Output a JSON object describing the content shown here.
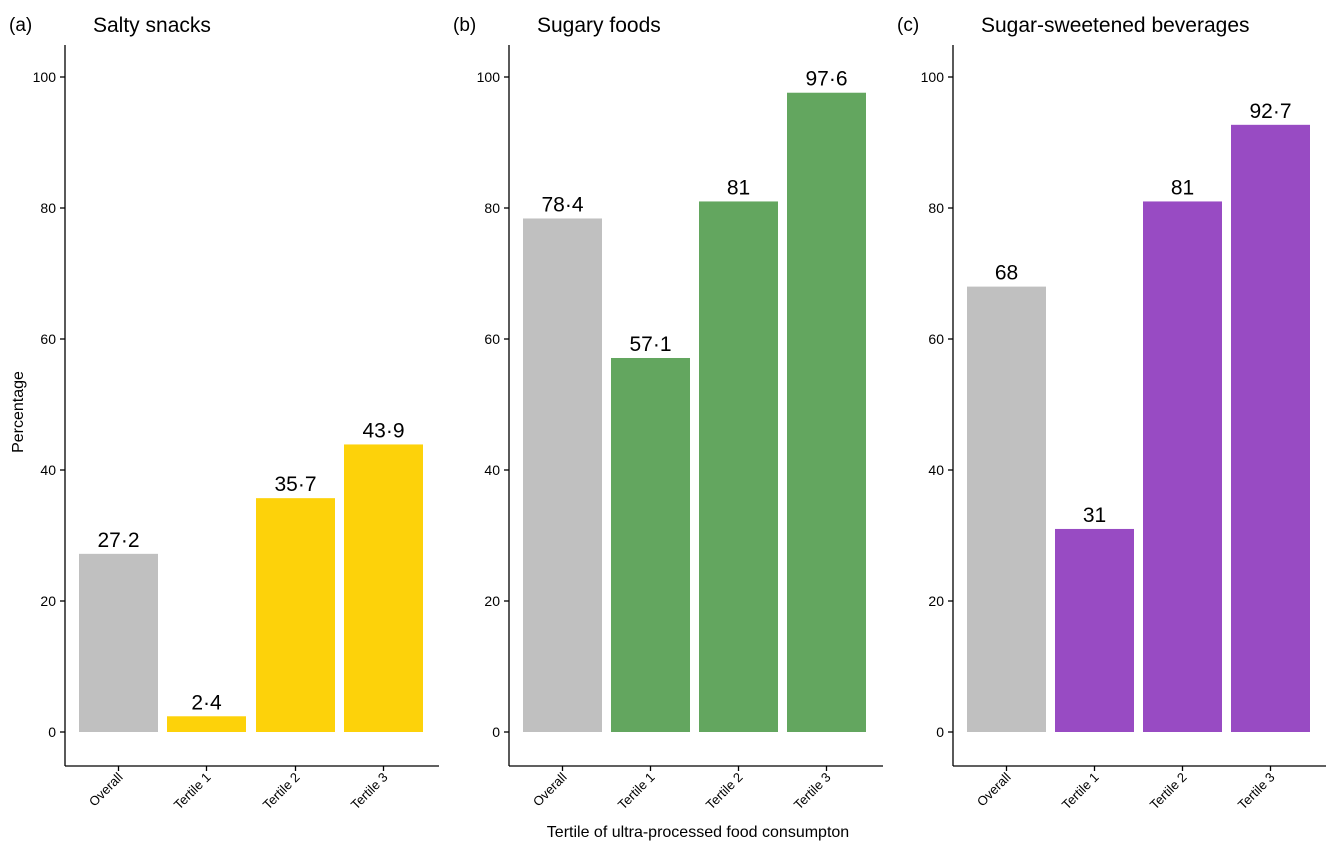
{
  "figure": {
    "ylabel": "Percentage",
    "xlabel": "Tertile of ultra-processed food consumpton"
  },
  "chart_data": [
    {
      "type": "bar",
      "panel": "(a)",
      "title": "Salty snacks",
      "categories": [
        "Overall",
        "Tertile 1",
        "Tertile 2",
        "Tertile 3"
      ],
      "values": [
        27.2,
        2.4,
        35.7,
        43.9
      ],
      "value_labels": [
        "27·2",
        "2·4",
        "35·7",
        "43·9"
      ],
      "colors": [
        "#c0c0c0",
        "#fdd20a",
        "#fdd20a",
        "#fdd20a"
      ],
      "ylim": [
        0,
        100
      ],
      "yticks": [
        0,
        20,
        40,
        60,
        80,
        100
      ],
      "grid": false
    },
    {
      "type": "bar",
      "panel": "(b)",
      "title": "Sugary foods",
      "categories": [
        "Overall",
        "Tertile 1",
        "Tertile 2",
        "Tertile 3"
      ],
      "values": [
        78.4,
        57.1,
        81,
        97.6
      ],
      "value_labels": [
        "78·4",
        "57·1",
        "81",
        "97·6"
      ],
      "colors": [
        "#c0c0c0",
        "#63a65f",
        "#63a65f",
        "#63a65f"
      ],
      "ylim": [
        0,
        100
      ],
      "yticks": [
        0,
        20,
        40,
        60,
        80,
        100
      ],
      "grid": false
    },
    {
      "type": "bar",
      "panel": "(c)",
      "title": "Sugar-sweetened beverages",
      "categories": [
        "Overall",
        "Tertile 1",
        "Tertile 2",
        "Tertile 3"
      ],
      "values": [
        68,
        31,
        81,
        92.7
      ],
      "value_labels": [
        "68",
        "31",
        "81",
        "92·7"
      ],
      "colors": [
        "#c0c0c0",
        "#984bc3",
        "#984bc3",
        "#984bc3"
      ],
      "ylim": [
        0,
        100
      ],
      "yticks": [
        0,
        20,
        40,
        60,
        80,
        100
      ],
      "grid": false
    }
  ]
}
